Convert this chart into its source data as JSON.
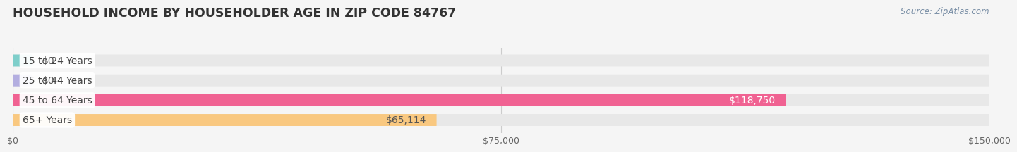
{
  "title": "HOUSEHOLD INCOME BY HOUSEHOLDER AGE IN ZIP CODE 84767",
  "source_text": "Source: ZipAtlas.com",
  "categories": [
    "15 to 24 Years",
    "25 to 44 Years",
    "45 to 64 Years",
    "65+ Years"
  ],
  "values": [
    0,
    0,
    118750,
    65114
  ],
  "bar_colors": [
    "#7ececa",
    "#b3aee0",
    "#f06292",
    "#f9c880"
  ],
  "label_colors": [
    "#555555",
    "#555555",
    "#ffffff",
    "#555555"
  ],
  "value_labels": [
    "$0",
    "$0",
    "$118,750",
    "$65,114"
  ],
  "xlim": [
    0,
    150000
  ],
  "xtick_values": [
    0,
    75000,
    150000
  ],
  "xtick_labels": [
    "$0",
    "$75,000",
    "$150,000"
  ],
  "background_color": "#f5f5f5",
  "bar_background_color": "#e8e8e8",
  "title_fontsize": 12.5,
  "label_fontsize": 10,
  "source_fontsize": 8.5,
  "bar_height": 0.6,
  "fig_width": 14.06,
  "fig_height": 2.33
}
